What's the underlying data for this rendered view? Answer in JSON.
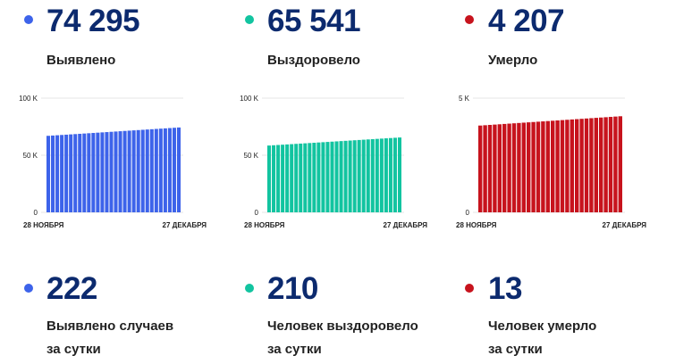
{
  "totals": [
    {
      "value": "74 295",
      "label": "Выявлено",
      "color": "#3d63ea"
    },
    {
      "value": "65 541",
      "label": "Выздоровело",
      "color": "#12c4a0"
    },
    {
      "value": "4 207",
      "label": "Умерло",
      "color": "#c7131d"
    }
  ],
  "daily": [
    {
      "value": "222",
      "label_line1": "Выявлено случаев",
      "label_line2": "за сутки",
      "color": "#3d63ea"
    },
    {
      "value": "210",
      "label_line1": "Человек выздоровело",
      "label_line2": "за сутки",
      "color": "#12c4a0"
    },
    {
      "value": "13",
      "label_line1": "Человек умерло",
      "label_line2": "за сутки",
      "color": "#c7131d"
    }
  ],
  "chart_data": [
    {
      "type": "bar",
      "color": "#3d63ea",
      "ylim": [
        0,
        100000
      ],
      "y_ticks": [
        {
          "value": 0,
          "label": "0"
        },
        {
          "value": 50000,
          "label": "50 K"
        },
        {
          "value": 100000,
          "label": "100 K"
        }
      ],
      "x_start_label": "28 НОЯБРЯ",
      "x_end_label": "27 ДЕКАБРЯ",
      "n_bars": 30,
      "start_value": 67000,
      "end_value": 74295
    },
    {
      "type": "bar",
      "color": "#12c4a0",
      "ylim": [
        0,
        100000
      ],
      "y_ticks": [
        {
          "value": 0,
          "label": "0"
        },
        {
          "value": 50000,
          "label": "50 K"
        },
        {
          "value": 100000,
          "label": "100 K"
        }
      ],
      "x_start_label": "28 НОЯБРЯ",
      "x_end_label": "27 ДЕКАБРЯ",
      "n_bars": 30,
      "start_value": 58500,
      "end_value": 65541
    },
    {
      "type": "bar",
      "color": "#c7131d",
      "ylim": [
        0,
        5000
      ],
      "y_ticks": [
        {
          "value": 0,
          "label": "0"
        },
        {
          "value": 5000,
          "label": "5 K"
        }
      ],
      "x_start_label": "28 НОЯБРЯ",
      "x_end_label": "27 ДЕКАБРЯ",
      "n_bars": 30,
      "start_value": 3800,
      "end_value": 4207
    }
  ]
}
